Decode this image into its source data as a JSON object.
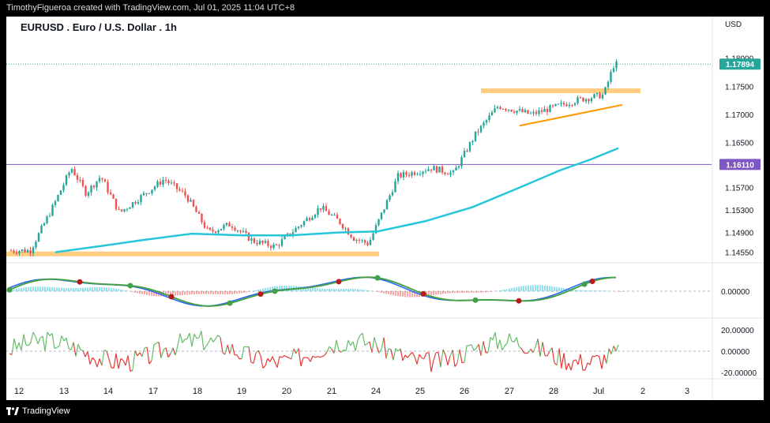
{
  "header": {
    "caption": "TimothyFigueroa created with TradingView.com, Jul 01, 2025 11:04 UTC+8"
  },
  "footer": {
    "brand": "TradingView"
  },
  "symbol_title": "EURUSD . Euro / U.S. Dollar . 1h",
  "currency": "USD",
  "colors": {
    "up_candle": "#26a69a",
    "down_candle": "#ef5350",
    "ma_line": "#26c6da",
    "support_zone": "#ffcc80",
    "trendline": "#ff9800",
    "horizontal_line": "#7e57c2",
    "price_badge": "#26a69a",
    "level_badge": "#7e57c2",
    "osc_green": "#43a047",
    "osc_blue": "#2962ff",
    "osc_red": "#b71c1c",
    "rsi_green": "#66bb6a",
    "rsi_red": "#e53935"
  },
  "chart_data": {
    "type": "candlestick",
    "symbol": "EURUSD",
    "timeframe": "1h",
    "x_tick_labels": [
      "12",
      "13",
      "14",
      "17",
      "18",
      "19",
      "20",
      "21",
      "24",
      "25",
      "26",
      "27",
      "28",
      "Jul",
      "2",
      "3"
    ],
    "y_tick_labels": [
      "1.18000",
      "1.17500",
      "1.17000",
      "1.16500",
      "1.15700",
      "1.15300",
      "1.14900",
      "1.14550"
    ],
    "current_price_label": "1.17894",
    "horizontal_level_label": "1.16110",
    "support_zone_price": 1.1452,
    "resistance_zone_price": 1.1742,
    "ylim": [
      1.1432,
      1.1815
    ],
    "key_points_close": [
      {
        "date": "12",
        "price": 1.1458
      },
      {
        "date": "12",
        "price": 1.1535
      },
      {
        "date": "13",
        "price": 1.1605
      },
      {
        "date": "13",
        "price": 1.156
      },
      {
        "date": "13",
        "price": 1.159
      },
      {
        "date": "14",
        "price": 1.1525
      },
      {
        "date": "14",
        "price": 1.1555
      },
      {
        "date": "17",
        "price": 1.1585
      },
      {
        "date": "17",
        "price": 1.1555
      },
      {
        "date": "18",
        "price": 1.149
      },
      {
        "date": "18",
        "price": 1.1505
      },
      {
        "date": "19",
        "price": 1.1475
      },
      {
        "date": "19",
        "price": 1.1465
      },
      {
        "date": "20",
        "price": 1.15
      },
      {
        "date": "20",
        "price": 1.1535
      },
      {
        "date": "21",
        "price": 1.151
      },
      {
        "date": "21",
        "price": 1.148
      },
      {
        "date": "21",
        "price": 1.147
      },
      {
        "date": "24",
        "price": 1.159
      },
      {
        "date": "25",
        "price": 1.1605
      },
      {
        "date": "25",
        "price": 1.1595
      },
      {
        "date": "26",
        "price": 1.1665
      },
      {
        "date": "26",
        "price": 1.1715
      },
      {
        "date": "27",
        "price": 1.17
      },
      {
        "date": "28",
        "price": 1.1725
      },
      {
        "date": "Jul",
        "price": 1.1735
      },
      {
        "date": "Jul",
        "price": 1.1789
      }
    ],
    "oscillator_zero_label": "0.00000",
    "rsi_tick_labels": [
      "20.00000",
      "0.00000",
      "-20.00000"
    ]
  }
}
